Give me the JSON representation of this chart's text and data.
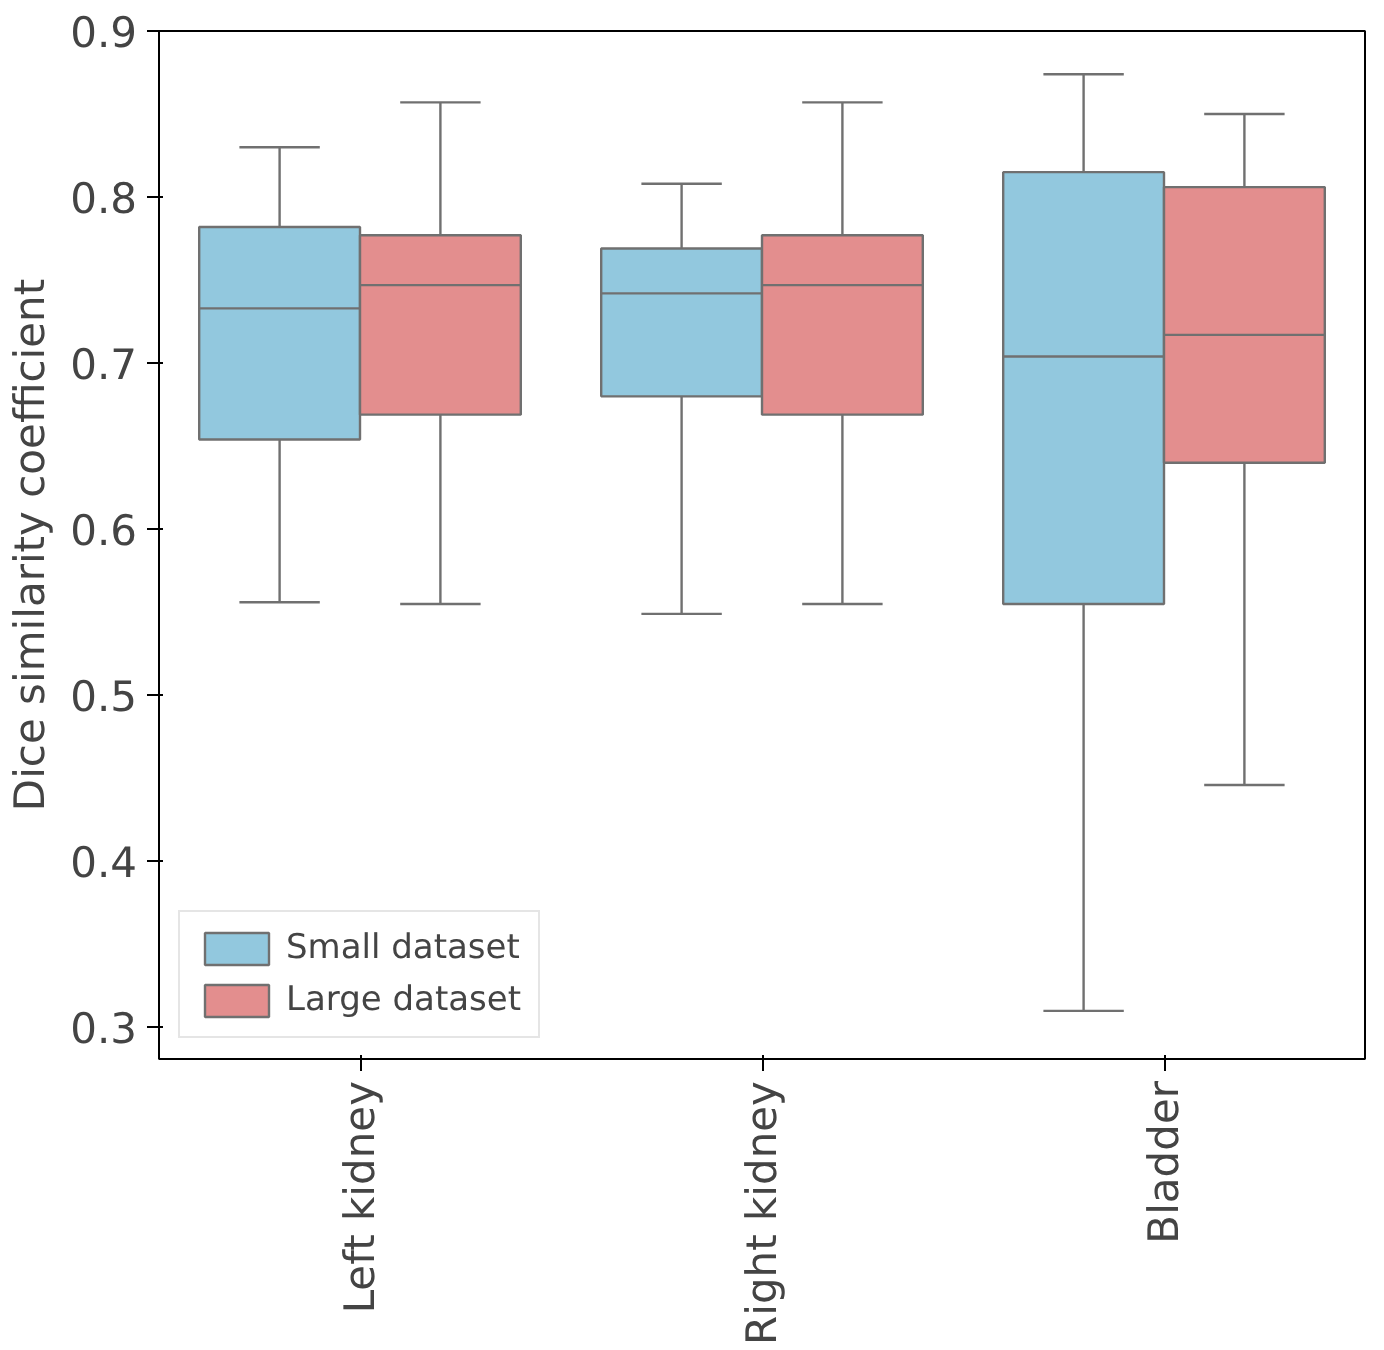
{
  "chart_data": {
    "type": "box",
    "ylabel": "Dice similarity coefficient",
    "categories": [
      "Left kidney",
      "Right kidney",
      "Bladder"
    ],
    "series": [
      {
        "name": "Small dataset",
        "color": "#92c8de",
        "boxes": [
          {
            "low": 0.556,
            "q1": 0.654,
            "median": 0.733,
            "q3": 0.782,
            "high": 0.83
          },
          {
            "low": 0.549,
            "q1": 0.68,
            "median": 0.742,
            "q3": 0.769,
            "high": 0.808
          },
          {
            "low": 0.31,
            "q1": 0.555,
            "median": 0.704,
            "q3": 0.815,
            "high": 0.874
          }
        ]
      },
      {
        "name": "Large dataset",
        "color": "#e38e8e",
        "boxes": [
          {
            "low": 0.555,
            "q1": 0.669,
            "median": 0.747,
            "q3": 0.777,
            "high": 0.857
          },
          {
            "low": 0.555,
            "q1": 0.669,
            "median": 0.747,
            "q3": 0.777,
            "high": 0.857
          },
          {
            "low": 0.446,
            "q1": 0.64,
            "median": 0.717,
            "q3": 0.806,
            "high": 0.85
          }
        ]
      }
    ],
    "ylim": [
      0.281,
      0.9
    ],
    "yticks": [
      0.3,
      0.4,
      0.5,
      0.6,
      0.7,
      0.8,
      0.9
    ],
    "legend": "bottom left"
  }
}
